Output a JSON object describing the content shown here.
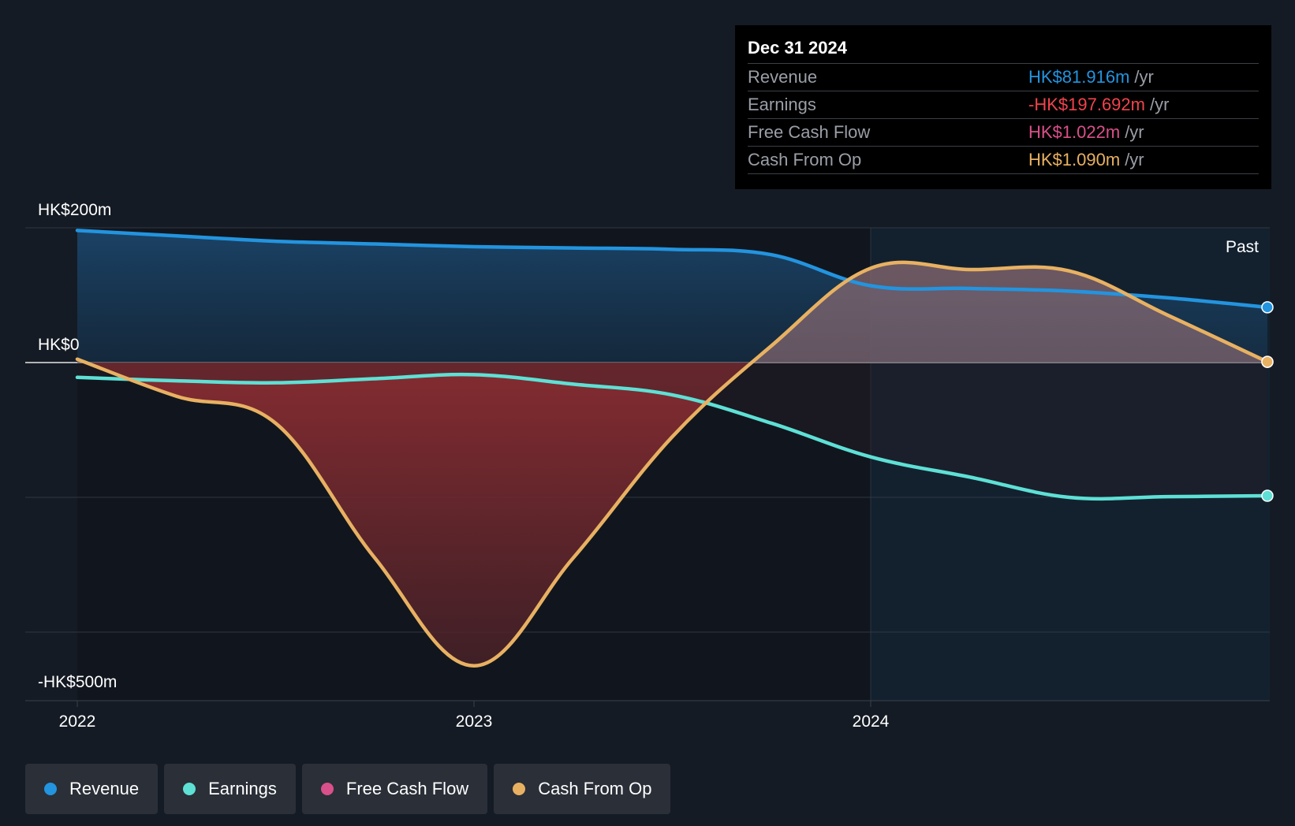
{
  "colors": {
    "revenue": "#2394df",
    "earnings": "#5ee0d5",
    "free_cash_flow": "#d9508a",
    "cash_from_op": "#e8b162",
    "background": "#151b24"
  },
  "tooltip": {
    "date": "Dec 31 2024",
    "rows": [
      {
        "label": "Revenue",
        "value": "HK$81.916m",
        "unit": "/yr",
        "color": "#2394df"
      },
      {
        "label": "Earnings",
        "value": "-HK$197.692m",
        "unit": "/yr",
        "color": "#f2434d"
      },
      {
        "label": "Free Cash Flow",
        "value": "HK$1.022m",
        "unit": "/yr",
        "color": "#d9508a"
      },
      {
        "label": "Cash From Op",
        "value": "HK$1.090m",
        "unit": "/yr",
        "color": "#e8b162"
      }
    ]
  },
  "legend": [
    {
      "label": "Revenue",
      "color": "#2394df"
    },
    {
      "label": "Earnings",
      "color": "#5ee0d5"
    },
    {
      "label": "Free Cash Flow",
      "color": "#d9508a"
    },
    {
      "label": "Cash From Op",
      "color": "#e8b162"
    }
  ],
  "chart_data": {
    "type": "line",
    "title": "",
    "past_label": "Past",
    "y_tick_labels": [
      {
        "value": 200,
        "label": "HK$200m"
      },
      {
        "value": 0,
        "label": "HK$0"
      },
      {
        "value": -500,
        "label": "-HK$500m"
      }
    ],
    "x_tick_labels": [
      {
        "value": 2022.0,
        "label": "2022"
      },
      {
        "value": 2023.0,
        "label": "2023"
      },
      {
        "value": 2024.0,
        "label": "2024"
      }
    ],
    "ylim": [
      -500,
      200
    ],
    "xlim": [
      2021.875,
      2025.0
    ],
    "grid_lines": [
      200,
      0,
      -200,
      -400
    ],
    "past_region_start": 2024.0,
    "series": [
      {
        "name": "Revenue",
        "color": "#2394df",
        "x": [
          2022.0,
          2022.25,
          2022.5,
          2022.75,
          2023.0,
          2023.25,
          2023.5,
          2023.75,
          2024.0,
          2024.25,
          2024.5,
          2024.75,
          2025.0
        ],
        "y": [
          196,
          188,
          180,
          176,
          172,
          170,
          168,
          160,
          114,
          110,
          106,
          96,
          82
        ]
      },
      {
        "name": "Earnings",
        "color": "#5ee0d5",
        "x": [
          2022.0,
          2022.25,
          2022.5,
          2022.75,
          2023.0,
          2023.25,
          2023.5,
          2023.75,
          2024.0,
          2024.25,
          2024.5,
          2024.75,
          2025.0
        ],
        "y": [
          -22,
          -27,
          -30,
          -24,
          -18,
          -32,
          -48,
          -90,
          -140,
          -170,
          -200,
          -199,
          -197.7
        ]
      },
      {
        "name": "Free Cash Flow",
        "color": "#d9508a",
        "x": [
          2022.0,
          2022.25,
          2022.5,
          2022.75,
          2023.0,
          2023.25,
          2023.5,
          2023.75,
          2024.0,
          2024.25,
          2024.5,
          2024.75,
          2025.0
        ],
        "y": [
          5,
          -50,
          -90,
          -290,
          -450,
          -290,
          -110,
          25,
          140,
          138,
          136,
          70,
          1.022
        ]
      },
      {
        "name": "Cash From Op",
        "color": "#e8b162",
        "x": [
          2022.0,
          2022.25,
          2022.5,
          2022.75,
          2023.0,
          2023.25,
          2023.5,
          2023.75,
          2024.0,
          2024.25,
          2024.5,
          2024.75,
          2025.0
        ],
        "y": [
          5,
          -50,
          -90,
          -290,
          -450,
          -290,
          -110,
          25,
          140,
          138,
          136,
          70,
          1.09
        ]
      }
    ]
  }
}
